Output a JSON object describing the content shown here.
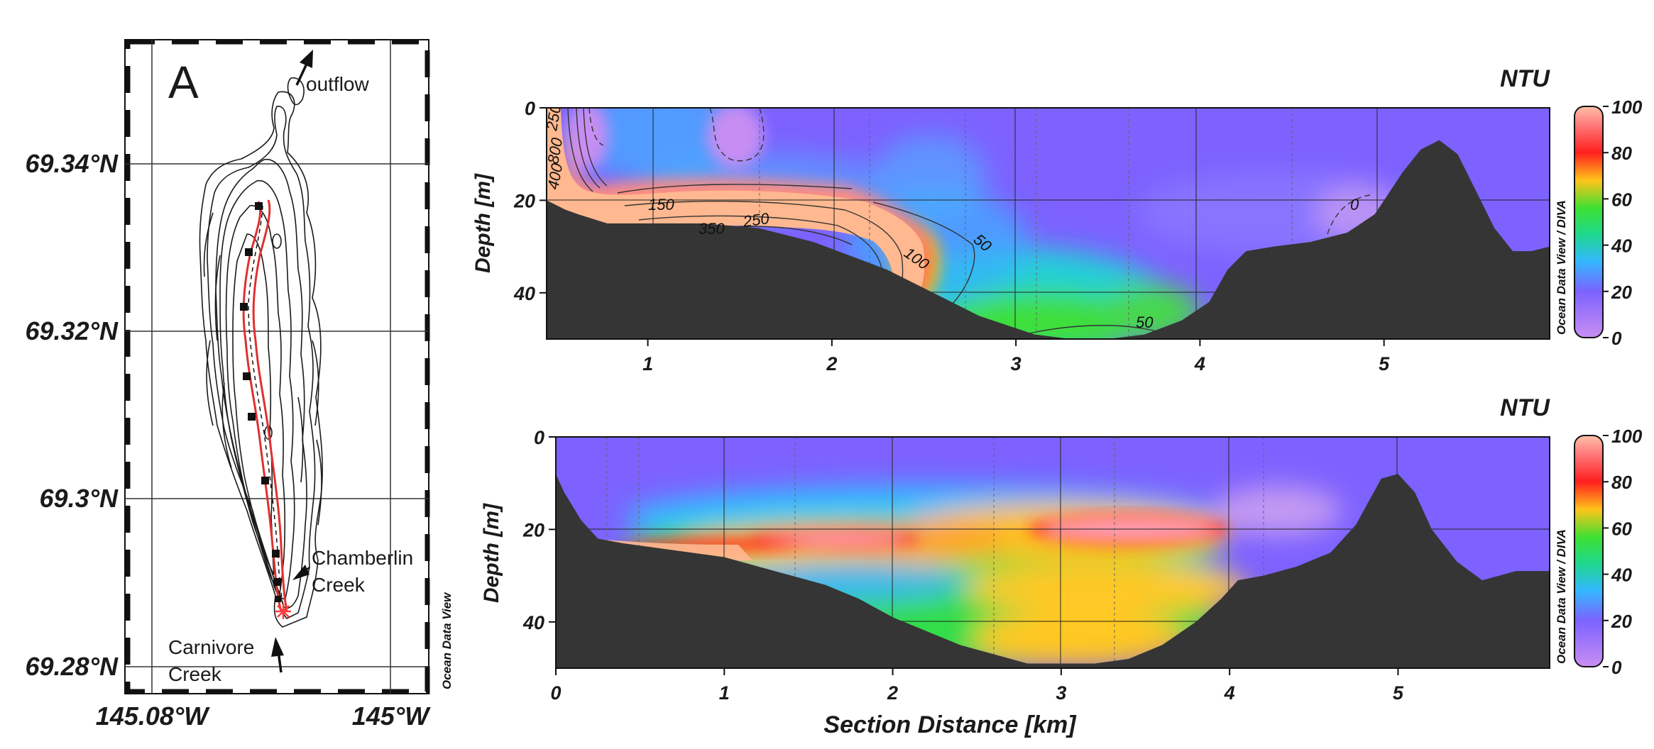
{
  "map": {
    "panel_letter": "A",
    "lat_ticks": [
      "69.34°N",
      "69.32°N",
      "69.3°N",
      "69.28°N"
    ],
    "lon_ticks": [
      "145.08°W",
      "145°W"
    ],
    "labels": {
      "outflow": "outflow",
      "chamberlin_1": "Chamberlin",
      "chamberlin_2": "Creek",
      "carnivore_1": "Carnivore",
      "carnivore_2": "Creek"
    },
    "watermark": "Ocean Data View"
  },
  "sections": {
    "top": {
      "title": "NTU",
      "ylabel": "Depth [m]",
      "colorbar_watermark": "Ocean Data View / DIVA",
      "contour_labels": [
        "250",
        "800",
        "400",
        "150",
        "350",
        "250",
        "100",
        "50",
        "0",
        "50"
      ]
    },
    "bottom": {
      "title": "NTU",
      "ylabel": "Depth [m]",
      "xlabel": "Section Distance [km]",
      "colorbar_watermark": "Ocean Data View / DIVA"
    }
  },
  "chart_data": [
    {
      "type": "heatmap",
      "title": "NTU",
      "ylabel": "Depth [m]",
      "x_ticks": [
        1,
        2,
        3,
        4,
        5
      ],
      "y_ticks": [
        0,
        20,
        40
      ],
      "xlim": [
        0.45,
        5.9
      ],
      "ylim": [
        50,
        0
      ],
      "colorbar": {
        "ticks": [
          0,
          20,
          40,
          60,
          80,
          100
        ],
        "range": [
          0,
          100
        ],
        "colors": [
          "#c98ef3",
          "#7c62ff",
          "#33b8ff",
          "#22e05a",
          "#ffc41a",
          "#ff1e1e",
          "#ffb8a6"
        ]
      },
      "contour_levels": [
        0,
        50,
        100,
        150,
        250,
        350,
        400,
        800
      ],
      "bathymetry": {
        "x": [
          0.45,
          0.55,
          0.62,
          0.7,
          0.78,
          0.9,
          1.05,
          1.3,
          1.6,
          1.9,
          2.1,
          2.3,
          2.5,
          2.65,
          2.8,
          2.95,
          3.1,
          3.3,
          3.5,
          3.7,
          3.9,
          4.05,
          4.15,
          4.25,
          4.4,
          4.6,
          4.8,
          4.95,
          5.1,
          5.2,
          5.3,
          5.4,
          5.5,
          5.6,
          5.7,
          5.8,
          5.9
        ],
        "depth": [
          20,
          22,
          23,
          24,
          25,
          25,
          25,
          25,
          26,
          29,
          32,
          35,
          39,
          42,
          45,
          47,
          49,
          50,
          50,
          49,
          46,
          42,
          35,
          31,
          30,
          29,
          27,
          23,
          14,
          9,
          7,
          10,
          18,
          26,
          31,
          31,
          30
        ]
      }
    },
    {
      "type": "heatmap",
      "title": "NTU",
      "ylabel": "Depth [m]",
      "xlabel": "Section Distance [km]",
      "x_ticks": [
        0,
        1,
        2,
        3,
        4,
        5
      ],
      "y_ticks": [
        0,
        20,
        40
      ],
      "xlim": [
        0,
        5.9
      ],
      "ylim": [
        50,
        0
      ],
      "colorbar": {
        "ticks": [
          0,
          20,
          40,
          60,
          80,
          100
        ],
        "range": [
          0,
          100
        ]
      },
      "bathymetry": {
        "x": [
          0,
          0.05,
          0.15,
          0.25,
          0.4,
          0.6,
          0.8,
          1.0,
          1.2,
          1.4,
          1.6,
          1.8,
          2.0,
          2.2,
          2.4,
          2.6,
          2.8,
          3.0,
          3.2,
          3.4,
          3.6,
          3.8,
          3.95,
          4.05,
          4.2,
          4.4,
          4.6,
          4.75,
          4.9,
          5.0,
          5.1,
          5.2,
          5.35,
          5.5,
          5.7,
          5.9
        ],
        "depth": [
          8,
          12,
          18,
          22,
          23,
          24,
          25,
          26,
          28,
          30,
          32,
          35,
          39,
          42,
          45,
          47,
          49,
          49,
          49,
          48,
          45,
          40,
          35,
          31,
          30,
          28,
          25,
          19,
          9,
          8,
          12,
          20,
          27,
          31,
          29,
          29
        ]
      }
    }
  ]
}
